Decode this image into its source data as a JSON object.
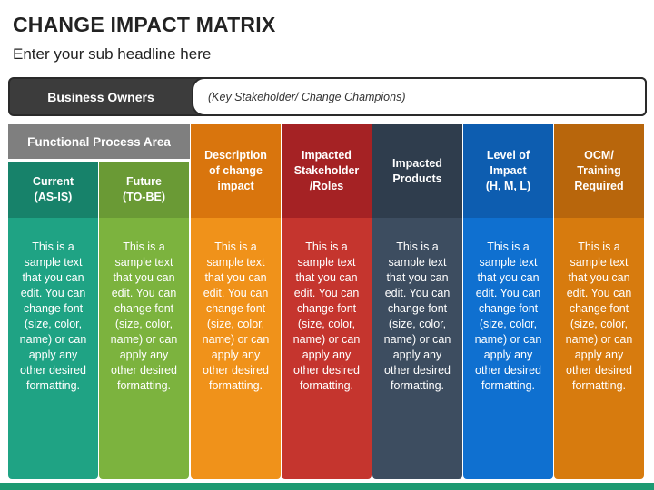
{
  "header": {
    "title": "CHANGE IMPACT MATRIX",
    "subtitle": "Enter your sub headline here"
  },
  "owners": {
    "label": "Business Owners",
    "note": "(Key Stakeholder/ Change Champions)"
  },
  "functional_area": "Functional Process Area",
  "body_text": "This is a sample text that you can edit. You can change font (size, color, name) or can apply any other desired formatting.",
  "columns": [
    {
      "id": "current",
      "label": "Current\n(AS-IS)",
      "head_color": "#17826a",
      "body_color": "#1fa384"
    },
    {
      "id": "future",
      "label": "Future\n(TO-BE)",
      "head_color": "#6a9a35",
      "body_color": "#7cb33e"
    },
    {
      "id": "description",
      "label": "Description\nof change\nimpact",
      "head_color": "#d9750d",
      "body_color": "#f0921a"
    },
    {
      "id": "stakeholder",
      "label": "Impacted\nStakeholder\n/Roles",
      "head_color": "#a52224",
      "body_color": "#c5352e"
    },
    {
      "id": "products",
      "label": "Impacted\nProducts",
      "head_color": "#2f3d4d",
      "body_color": "#3d4d60"
    },
    {
      "id": "level",
      "label": "Level of\nImpact\n(H, M, L)",
      "head_color": "#0d5db0",
      "body_color": "#0f70d0"
    },
    {
      "id": "ocm",
      "label": "OCM/\nTraining\nRequired",
      "head_color": "#b8660c",
      "body_color": "#d77b0e"
    }
  ]
}
